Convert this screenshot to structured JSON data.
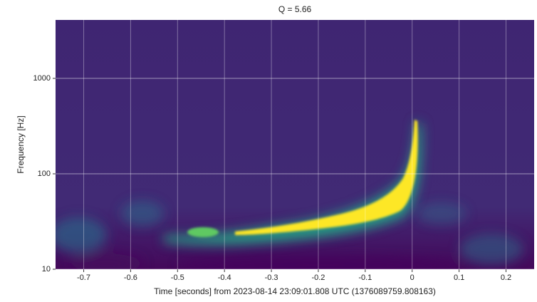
{
  "chart_data": {
    "type": "spectrogram",
    "title": "Q = 5.66",
    "x_label": "Time [seconds] from 2023-08-14 23:09:01.808 UTC (1376089759.808163)",
    "y_label": "Frequency [Hz]",
    "xlim": [
      -0.76,
      0.26
    ],
    "xticks": [
      -0.7,
      -0.6,
      -0.5,
      -0.4,
      -0.3,
      -0.2,
      -0.1,
      0,
      0.1,
      0.2
    ],
    "ylim": [
      10,
      4096
    ],
    "yticks": [
      10,
      100,
      1000
    ],
    "y_scale": "log",
    "grid": true,
    "grid_color": "#ffffff"
  }
}
